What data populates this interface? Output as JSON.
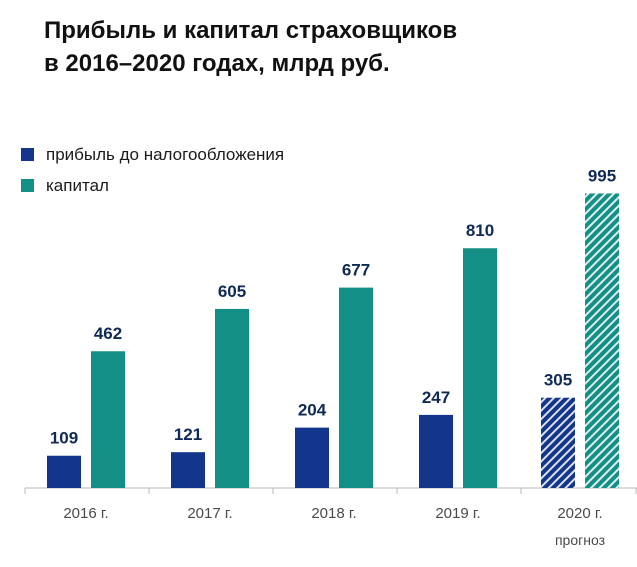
{
  "chart_data": {
    "type": "bar",
    "title_lines": [
      "Прибыль и капитал страховщиков",
      "в 2016–2020 годах, млрд руб."
    ],
    "categories": [
      "2016 г.",
      "2017 г.",
      "2018 г.",
      "2019 г.",
      "2020 г."
    ],
    "category_notes": [
      "",
      "",
      "",
      "",
      "прогноз"
    ],
    "series": [
      {
        "name": "прибыль до налогообложения",
        "values": [
          109,
          121,
          204,
          247,
          305
        ],
        "color": "#14358c"
      },
      {
        "name": "капитал",
        "values": [
          462,
          605,
          677,
          810,
          995
        ],
        "color": "#148f86"
      }
    ],
    "forecast_category_index": 4,
    "forecast_pattern": "diagonal-hatch",
    "ylim": [
      0,
      1000
    ],
    "grid": false,
    "legend_position": "top-left"
  }
}
